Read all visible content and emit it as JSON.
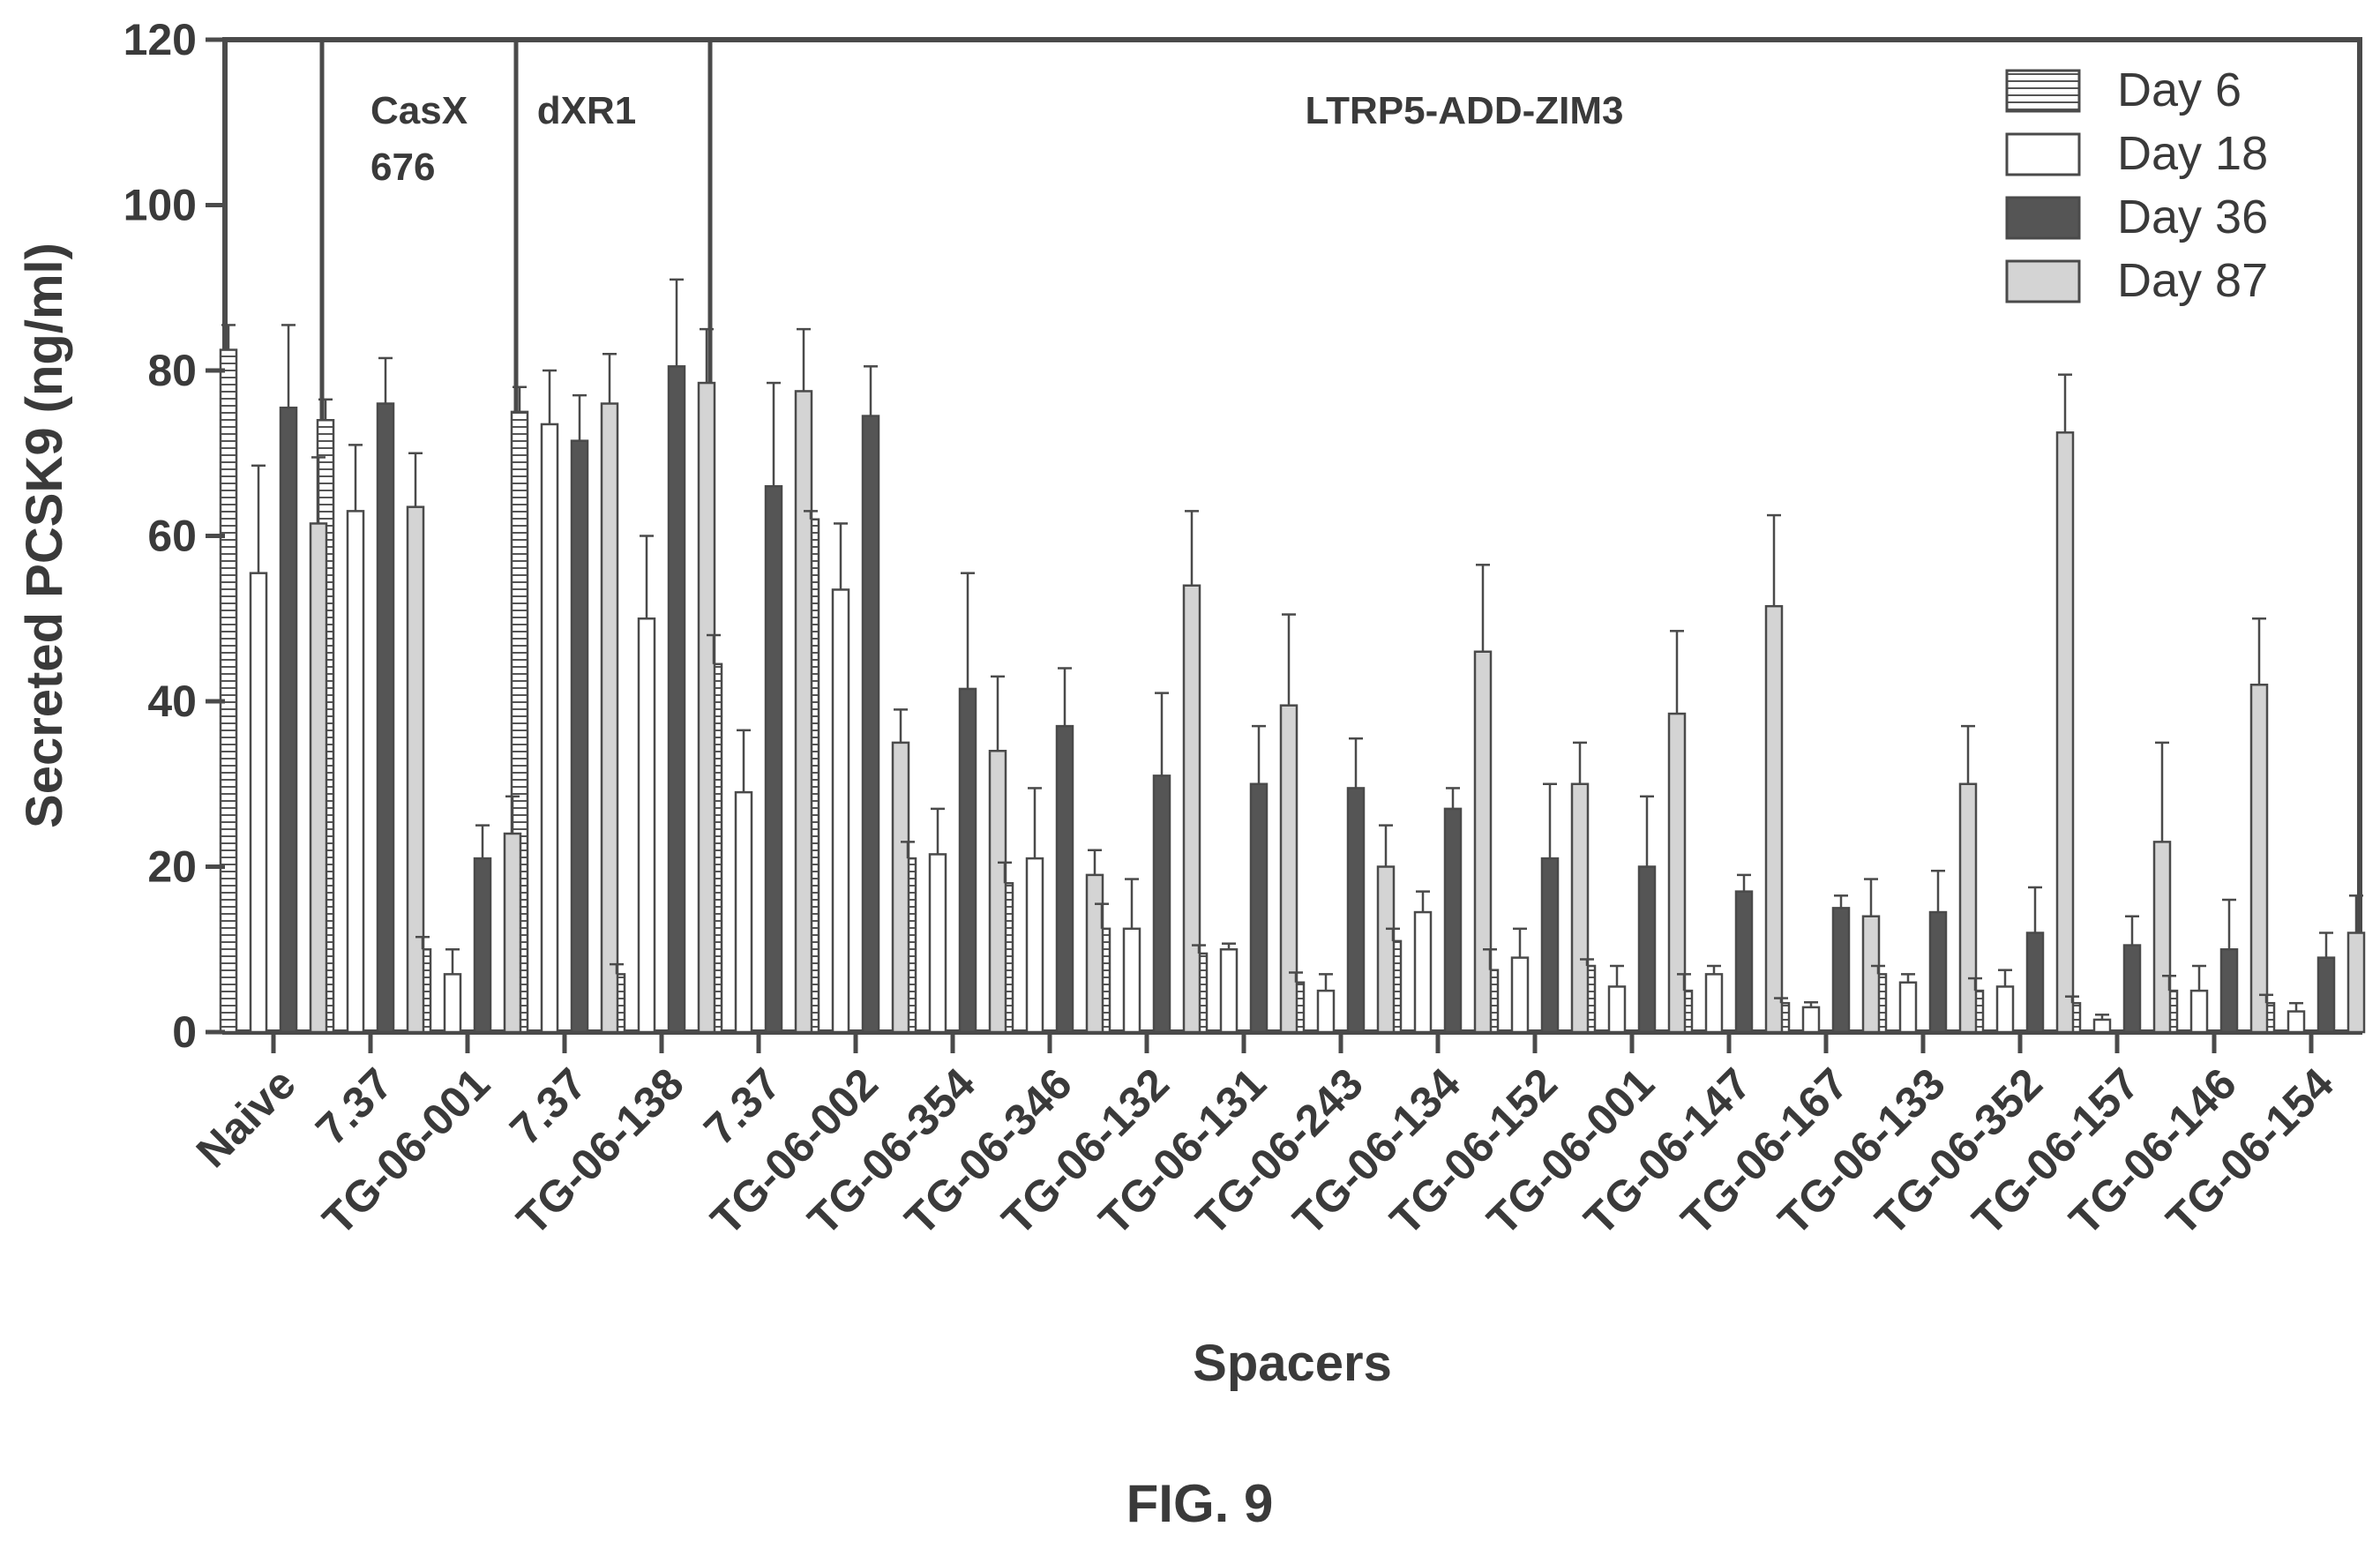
{
  "figure_label": "FIG. 9",
  "chart_data": {
    "type": "bar",
    "ylabel": "Secreted PCSK9 (ng/ml)",
    "xlabel": "Spacers",
    "ylim": [
      0,
      120
    ],
    "yticks": [
      0,
      20,
      40,
      60,
      80,
      100,
      120
    ],
    "categories": [
      "Naive",
      "7.37",
      "TG-06-001",
      "7.37",
      "TG-06-138",
      "7.37",
      "TG-06-002",
      "TG-06-354",
      "TG-06-346",
      "TG-06-132",
      "TG-06-131",
      "TG-06-243",
      "TG-06-134",
      "TG-06-152",
      "TG-06-001",
      "TG-06-147",
      "TG-06-167",
      "TG-06-133",
      "TG-06-352",
      "TG-06-157",
      "TG-06-146",
      "TG-06-154"
    ],
    "groups": [
      {
        "label": "",
        "start": 0,
        "end": 0
      },
      {
        "label": "CasX\n676",
        "start": 1,
        "end": 2
      },
      {
        "label": "dXR1",
        "start": 3,
        "end": 4
      },
      {
        "label": "LTRP5-ADD-ZIM3",
        "start": 5,
        "end": 21
      }
    ],
    "series": [
      {
        "name": "Day 6",
        "pattern": "hlines",
        "color": "#ffffff",
        "values": [
          82.5,
          74,
          10,
          75,
          7,
          44.5,
          62,
          21,
          18,
          12.5,
          9.5,
          6,
          11,
          7.5,
          8,
          5,
          3.5,
          7,
          5,
          3.5,
          5,
          3.5
        ],
        "errors": [
          3,
          2.5,
          1.5,
          3,
          1.2,
          3.5,
          1,
          2,
          2.5,
          3,
          1,
          1.2,
          1.5,
          2.5,
          0.8,
          2,
          0.6,
          1,
          1.5,
          0.8,
          1.8,
          1
        ]
      },
      {
        "name": "Day 18",
        "pattern": "open",
        "color": "#ffffff",
        "values": [
          55.5,
          63,
          7,
          73.5,
          50,
          29,
          53.5,
          21.5,
          21,
          12.5,
          10,
          5,
          14.5,
          9,
          5.5,
          7,
          3,
          6,
          5.5,
          1.5,
          5,
          2.5
        ],
        "errors": [
          13,
          8,
          3,
          6.5,
          10,
          7.5,
          8,
          5.5,
          8.5,
          6,
          0.7,
          2,
          2.5,
          3.5,
          2.5,
          1,
          0.6,
          1,
          2,
          0.6,
          3,
          1
        ]
      },
      {
        "name": "Day 36",
        "pattern": "dark",
        "color": "#555555",
        "values": [
          75.5,
          76,
          21,
          71.5,
          80.5,
          66,
          74.5,
          41.5,
          37,
          31,
          30,
          29.5,
          27,
          21,
          20,
          17,
          15,
          14.5,
          12,
          10.5,
          10,
          9
        ],
        "errors": [
          10,
          5.5,
          4,
          5.5,
          10.5,
          12.5,
          6,
          14,
          7,
          10,
          7,
          6,
          2.5,
          9,
          8.5,
          2,
          1.5,
          5,
          5.5,
          3.5,
          6,
          3
        ]
      },
      {
        "name": "Day 87",
        "pattern": "light",
        "color": "#d4d4d4",
        "values": [
          61.5,
          63.5,
          24,
          76,
          78.5,
          77.5,
          35,
          34,
          19,
          54,
          39.5,
          20,
          46,
          30,
          38.5,
          51.5,
          14,
          30,
          72.5,
          23,
          42,
          12
        ],
        "errors": [
          8,
          6.5,
          4.5,
          6,
          6.5,
          7.5,
          4,
          9,
          3,
          9,
          11,
          5,
          10.5,
          5,
          10,
          11,
          4.5,
          7,
          7,
          12,
          8,
          4.5
        ]
      }
    ],
    "legend_position": "top-right",
    "grid": false
  }
}
